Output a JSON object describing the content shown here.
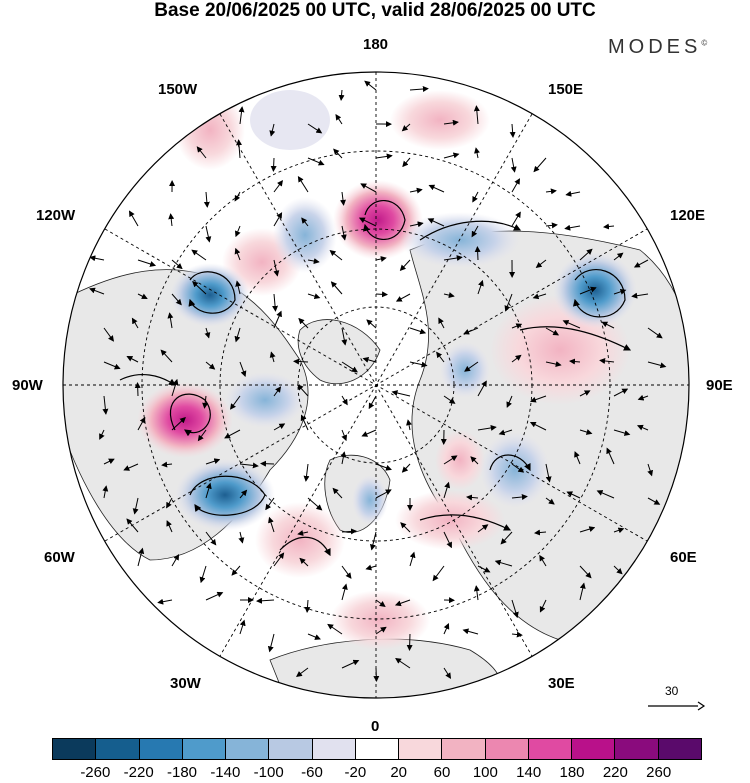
{
  "title": "Base 20/06/2025 00 UTC, valid 28/06/2025 00 UTC",
  "brand": {
    "name": "MODES",
    "mark": "©"
  },
  "map": {
    "projection": "north-polar-stereographic",
    "longitude_labels": {
      "top": "180",
      "bottom": "0",
      "left": "90W",
      "right": "90E",
      "upper_left_1": "150W",
      "upper_left_2": "120W",
      "upper_right_1": "150E",
      "upper_right_2": "120E",
      "lower_left_1": "60W",
      "lower_left_2": "30W",
      "lower_right_1": "60E",
      "lower_right_2": "30E"
    },
    "colors": {
      "land": "#e8e8e8",
      "ocean": "#ffffff",
      "positive_strong": "#c11b8a",
      "negative_strong": "#1d5f91"
    }
  },
  "scale": {
    "value": "30"
  },
  "colorbar": {
    "colors": [
      "#0b3a5c",
      "#155e8e",
      "#2779b1",
      "#4f9bcb",
      "#86b4d8",
      "#b8c9e3",
      "#e1e1ef",
      "#ffffff",
      "#f8d8dc",
      "#f2b3c2",
      "#ec87b0",
      "#e04aa2",
      "#b9118a",
      "#8a0b7d",
      "#5a0a6b"
    ],
    "ticks": [
      "-260",
      "-220",
      "-180",
      "-140",
      "-100",
      "-60",
      "-20",
      "20",
      "60",
      "100",
      "140",
      "180",
      "220",
      "260"
    ]
  }
}
